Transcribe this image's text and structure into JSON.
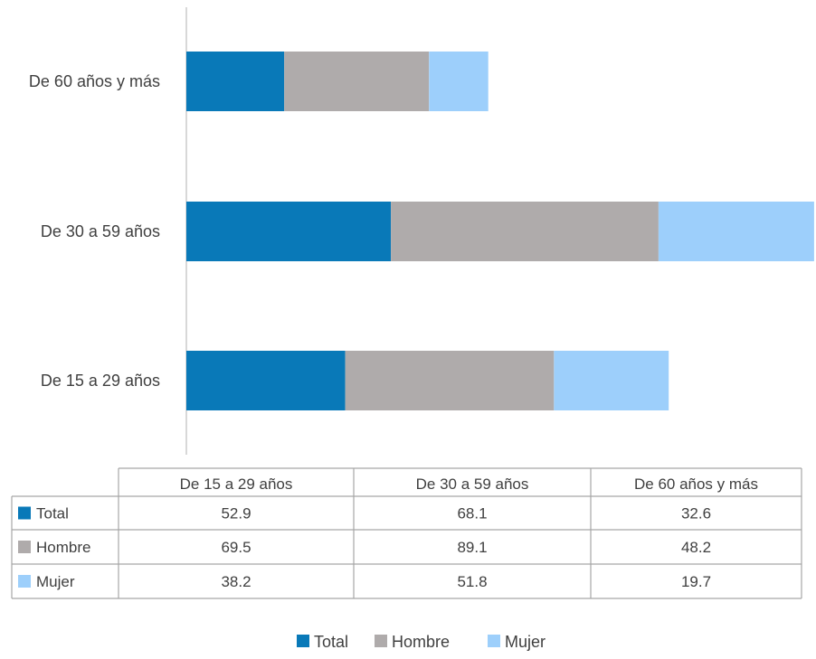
{
  "chart_data": {
    "type": "bar",
    "orientation": "horizontal",
    "stacked": true,
    "categories": [
      "De 15 a 29 años",
      "De 30 a 59 años",
      "De 60 años y más"
    ],
    "series": [
      {
        "name": "Total",
        "color": "#0979b8",
        "values": [
          52.9,
          68.1,
          32.6
        ]
      },
      {
        "name": "Hombre",
        "color": "#afabab",
        "values": [
          69.5,
          89.1,
          48.2
        ]
      },
      {
        "name": "Mujer",
        "color": "#9dcffb",
        "values": [
          38.2,
          51.8,
          19.7
        ]
      }
    ],
    "data_table": true,
    "legend": "bottom-center",
    "grid": false
  }
}
